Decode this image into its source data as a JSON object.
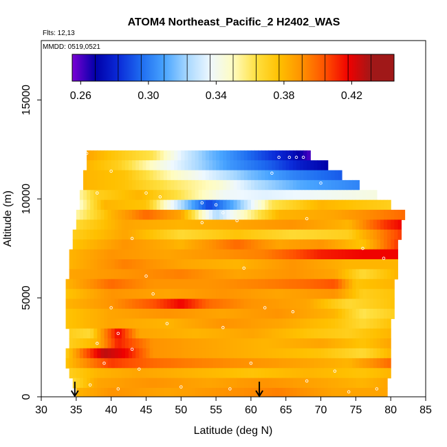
{
  "chart_data": {
    "type": "heatmap",
    "title": "ATOM4 Northeast_Pacific_2 H2402_WAS",
    "flights_label": "Flts: 12,13",
    "dates_label": "MMDD: 0519,0521",
    "xlabel": "Latitude (deg N)",
    "ylabel": "Altitude (m)",
    "xlim": [
      30,
      85
    ],
    "ylim": [
      0,
      18000
    ],
    "x_ticks": [
      "30",
      "35",
      "40",
      "45",
      "50",
      "55",
      "60",
      "65",
      "70",
      "75",
      "80",
      "85"
    ],
    "y_ticks": [
      "0",
      "5000",
      "10000",
      "15000"
    ],
    "colorbar": {
      "range": [
        0.255,
        0.445
      ],
      "tick_labels": [
        "0.26",
        "0.30",
        "0.34",
        "0.38",
        "0.42"
      ],
      "tick_values": [
        0.26,
        0.3,
        0.34,
        0.38,
        0.42
      ],
      "colors": [
        "#7a00d4",
        "#0000a8",
        "#0a2ad8",
        "#1e6cf0",
        "#48a4ff",
        "#a8d8ff",
        "#eef8ff",
        "#fffcc0",
        "#ffe040",
        "#ffc000",
        "#ff9000",
        "#ff5000",
        "#f00000",
        "#a01818"
      ]
    },
    "arrows_latitude": [
      34.8,
      61.2
    ],
    "rows": [
      {
        "alt": 12200,
        "lat_start": 36.5,
        "lat_end": 68.5,
        "stops": [
          [
            36.5,
            0.395
          ],
          [
            40,
            0.385
          ],
          [
            46,
            0.37
          ],
          [
            50,
            0.34
          ],
          [
            54,
            0.32
          ],
          [
            58,
            0.305
          ],
          [
            62,
            0.29
          ],
          [
            66,
            0.275
          ],
          [
            68.5,
            0.26
          ]
        ]
      },
      {
        "alt": 11700,
        "lat_start": 36.5,
        "lat_end": 71,
        "stops": [
          [
            36.5,
            0.39
          ],
          [
            41,
            0.38
          ],
          [
            47,
            0.35
          ],
          [
            52,
            0.33
          ],
          [
            57,
            0.31
          ],
          [
            63,
            0.295
          ],
          [
            67,
            0.28
          ],
          [
            71,
            0.27
          ]
        ]
      },
      {
        "alt": 11200,
        "lat_start": 36,
        "lat_end": 73,
        "stops": [
          [
            36,
            0.39
          ],
          [
            42,
            0.385
          ],
          [
            48,
            0.36
          ],
          [
            54,
            0.34
          ],
          [
            60,
            0.32
          ],
          [
            66,
            0.305
          ],
          [
            73,
            0.295
          ]
        ]
      },
      {
        "alt": 10700,
        "lat_start": 36,
        "lat_end": 75.5,
        "stops": [
          [
            36,
            0.39
          ],
          [
            42,
            0.385
          ],
          [
            48,
            0.37
          ],
          [
            55,
            0.355
          ],
          [
            61,
            0.33
          ],
          [
            67,
            0.315
          ],
          [
            75.5,
            0.305
          ]
        ]
      },
      {
        "alt": 10200,
        "lat_start": 35.5,
        "lat_end": 78,
        "stops": [
          [
            35.5,
            0.36
          ],
          [
            38,
            0.38
          ],
          [
            44,
            0.39
          ],
          [
            50,
            0.37
          ],
          [
            56,
            0.345
          ],
          [
            62,
            0.34
          ],
          [
            70,
            0.345
          ],
          [
            78,
            0.35
          ]
        ]
      },
      {
        "alt": 9700,
        "lat_start": 35.5,
        "lat_end": 80,
        "stops": [
          [
            35.5,
            0.355
          ],
          [
            39,
            0.39
          ],
          [
            45,
            0.385
          ],
          [
            50,
            0.33
          ],
          [
            54,
            0.29
          ],
          [
            58,
            0.32
          ],
          [
            63,
            0.37
          ],
          [
            70,
            0.39
          ],
          [
            80,
            0.38
          ]
        ]
      },
      {
        "alt": 9200,
        "lat_start": 35,
        "lat_end": 82,
        "stops": [
          [
            35,
            0.36
          ],
          [
            40,
            0.39
          ],
          [
            45,
            0.41
          ],
          [
            50,
            0.395
          ],
          [
            55,
            0.33
          ],
          [
            58,
            0.35
          ],
          [
            64,
            0.39
          ],
          [
            72,
            0.395
          ],
          [
            82,
            0.41
          ]
        ]
      },
      {
        "alt": 8700,
        "lat_start": 35,
        "lat_end": 81.5,
        "stops": [
          [
            35,
            0.375
          ],
          [
            42,
            0.395
          ],
          [
            50,
            0.39
          ],
          [
            58,
            0.395
          ],
          [
            66,
            0.4
          ],
          [
            74,
            0.39
          ],
          [
            79,
            0.42
          ],
          [
            81.5,
            0.43
          ]
        ]
      },
      {
        "alt": 8200,
        "lat_start": 34.5,
        "lat_end": 81.5,
        "stops": [
          [
            34.5,
            0.38
          ],
          [
            42,
            0.395
          ],
          [
            50,
            0.375
          ],
          [
            58,
            0.385
          ],
          [
            66,
            0.375
          ],
          [
            74,
            0.38
          ],
          [
            81.5,
            0.42
          ]
        ]
      },
      {
        "alt": 7700,
        "lat_start": 34.5,
        "lat_end": 81,
        "stops": [
          [
            34.5,
            0.385
          ],
          [
            42,
            0.4
          ],
          [
            50,
            0.39
          ],
          [
            58,
            0.41
          ],
          [
            64,
            0.395
          ],
          [
            70,
            0.4
          ],
          [
            76,
            0.385
          ],
          [
            81,
            0.42
          ]
        ]
      },
      {
        "alt": 7200,
        "lat_start": 34,
        "lat_end": 81,
        "stops": [
          [
            34,
            0.39
          ],
          [
            40,
            0.4
          ],
          [
            48,
            0.395
          ],
          [
            55,
            0.4
          ],
          [
            62,
            0.405
          ],
          [
            70,
            0.425
          ],
          [
            76,
            0.43
          ],
          [
            81,
            0.43
          ]
        ]
      },
      {
        "alt": 6700,
        "lat_start": 34,
        "lat_end": 81,
        "stops": [
          [
            34,
            0.39
          ],
          [
            42,
            0.405
          ],
          [
            50,
            0.395
          ],
          [
            58,
            0.39
          ],
          [
            66,
            0.4
          ],
          [
            74,
            0.39
          ],
          [
            81,
            0.39
          ]
        ]
      },
      {
        "alt": 6200,
        "lat_start": 34,
        "lat_end": 81,
        "stops": [
          [
            34,
            0.395
          ],
          [
            42,
            0.4
          ],
          [
            50,
            0.405
          ],
          [
            58,
            0.395
          ],
          [
            66,
            0.4
          ],
          [
            72,
            0.395
          ],
          [
            76,
            0.375
          ],
          [
            81,
            0.39
          ]
        ]
      },
      {
        "alt": 5700,
        "lat_start": 33.5,
        "lat_end": 80.5,
        "stops": [
          [
            33.5,
            0.39
          ],
          [
            40,
            0.41
          ],
          [
            46,
            0.4
          ],
          [
            54,
            0.4
          ],
          [
            62,
            0.405
          ],
          [
            68,
            0.41
          ],
          [
            72,
            0.415
          ],
          [
            75,
            0.385
          ],
          [
            80.5,
            0.39
          ]
        ]
      },
      {
        "alt": 5200,
        "lat_start": 33.5,
        "lat_end": 80.5,
        "stops": [
          [
            33.5,
            0.385
          ],
          [
            40,
            0.4
          ],
          [
            48,
            0.395
          ],
          [
            56,
            0.4
          ],
          [
            64,
            0.395
          ],
          [
            72,
            0.4
          ],
          [
            76,
            0.38
          ],
          [
            80.5,
            0.385
          ]
        ]
      },
      {
        "alt": 4700,
        "lat_start": 33.5,
        "lat_end": 80.5,
        "stops": [
          [
            33.5,
            0.39
          ],
          [
            40,
            0.4
          ],
          [
            46,
            0.415
          ],
          [
            50,
            0.43
          ],
          [
            54,
            0.41
          ],
          [
            60,
            0.4
          ],
          [
            68,
            0.395
          ],
          [
            74,
            0.375
          ],
          [
            80.5,
            0.385
          ]
        ]
      },
      {
        "alt": 4200,
        "lat_start": 33.5,
        "lat_end": 80.5,
        "stops": [
          [
            33.5,
            0.385
          ],
          [
            40,
            0.395
          ],
          [
            48,
            0.4
          ],
          [
            56,
            0.395
          ],
          [
            64,
            0.4
          ],
          [
            72,
            0.39
          ],
          [
            76,
            0.37
          ],
          [
            80.5,
            0.38
          ]
        ]
      },
      {
        "alt": 3700,
        "lat_start": 33.5,
        "lat_end": 80,
        "stops": [
          [
            33.5,
            0.385
          ],
          [
            40,
            0.395
          ],
          [
            48,
            0.39
          ],
          [
            56,
            0.4
          ],
          [
            64,
            0.395
          ],
          [
            72,
            0.385
          ],
          [
            76,
            0.375
          ],
          [
            80,
            0.385
          ]
        ]
      },
      {
        "alt": 3200,
        "lat_start": 34,
        "lat_end": 80,
        "stops": [
          [
            34,
            0.38
          ],
          [
            37,
            0.375
          ],
          [
            41,
            0.43
          ],
          [
            44,
            0.395
          ],
          [
            52,
            0.39
          ],
          [
            60,
            0.395
          ],
          [
            68,
            0.385
          ],
          [
            74,
            0.38
          ],
          [
            80,
            0.39
          ]
        ]
      },
      {
        "alt": 2700,
        "lat_start": 34,
        "lat_end": 80,
        "stops": [
          [
            34,
            0.38
          ],
          [
            38,
            0.39
          ],
          [
            41,
            0.425
          ],
          [
            46,
            0.4
          ],
          [
            54,
            0.395
          ],
          [
            62,
            0.39
          ],
          [
            70,
            0.395
          ],
          [
            76,
            0.385
          ],
          [
            80,
            0.395
          ]
        ]
      },
      {
        "alt": 2200,
        "lat_start": 33.5,
        "lat_end": 80,
        "stops": [
          [
            33.5,
            0.38
          ],
          [
            36,
            0.41
          ],
          [
            39,
            0.44
          ],
          [
            42,
            0.43
          ],
          [
            46,
            0.4
          ],
          [
            54,
            0.395
          ],
          [
            62,
            0.39
          ],
          [
            70,
            0.385
          ],
          [
            76,
            0.375
          ],
          [
            80,
            0.39
          ]
        ]
      },
      {
        "alt": 1700,
        "lat_start": 33.5,
        "lat_end": 80,
        "stops": [
          [
            33.5,
            0.385
          ],
          [
            36,
            0.4
          ],
          [
            40,
            0.42
          ],
          [
            46,
            0.41
          ],
          [
            52,
            0.405
          ],
          [
            60,
            0.4
          ],
          [
            68,
            0.395
          ],
          [
            74,
            0.39
          ],
          [
            80,
            0.41
          ]
        ]
      },
      {
        "alt": 1200,
        "lat_start": 34,
        "lat_end": 80,
        "stops": [
          [
            34,
            0.38
          ],
          [
            38,
            0.39
          ],
          [
            44,
            0.395
          ],
          [
            52,
            0.39
          ],
          [
            60,
            0.385
          ],
          [
            68,
            0.39
          ],
          [
            76,
            0.385
          ],
          [
            80,
            0.39
          ]
        ]
      },
      {
        "alt": 700,
        "lat_start": 34.5,
        "lat_end": 79.5,
        "stops": [
          [
            34.5,
            0.375
          ],
          [
            38,
            0.395
          ],
          [
            46,
            0.4
          ],
          [
            54,
            0.395
          ],
          [
            62,
            0.4
          ],
          [
            70,
            0.395
          ],
          [
            76,
            0.39
          ],
          [
            79.5,
            0.395
          ]
        ]
      },
      {
        "alt": 200,
        "lat_start": 35,
        "lat_end": 79.5,
        "stops": [
          [
            35,
            0.39
          ],
          [
            40,
            0.4
          ],
          [
            48,
            0.395
          ],
          [
            56,
            0.4
          ],
          [
            64,
            0.405
          ],
          [
            72,
            0.395
          ],
          [
            79.5,
            0.395
          ]
        ]
      }
    ],
    "samples": [
      [
        36.5,
        12300
      ],
      [
        40,
        11400
      ],
      [
        38,
        10300
      ],
      [
        45,
        10300
      ],
      [
        47,
        10100
      ],
      [
        53,
        9800
      ],
      [
        55,
        9700
      ],
      [
        56,
        9300
      ],
      [
        64,
        12100
      ],
      [
        65.5,
        12100
      ],
      [
        66.5,
        12100
      ],
      [
        67.5,
        12100
      ],
      [
        63,
        11300
      ],
      [
        70,
        10800
      ],
      [
        43,
        8000
      ],
      [
        53,
        8800
      ],
      [
        58,
        8900
      ],
      [
        68,
        9000
      ],
      [
        76,
        7500
      ],
      [
        79,
        7000
      ],
      [
        45,
        6100
      ],
      [
        59,
        6500
      ],
      [
        46,
        5200
      ],
      [
        40,
        4500
      ],
      [
        62,
        4500
      ],
      [
        66,
        4300
      ],
      [
        48,
        3700
      ],
      [
        56,
        3500
      ],
      [
        41,
        3200
      ],
      [
        38,
        2700
      ],
      [
        43,
        2400
      ],
      [
        39,
        1700
      ],
      [
        44,
        1400
      ],
      [
        60,
        1700
      ],
      [
        72,
        1300
      ],
      [
        37,
        600
      ],
      [
        41,
        400
      ],
      [
        50,
        500
      ],
      [
        57,
        400
      ],
      [
        68,
        800
      ],
      [
        74,
        250
      ],
      [
        78,
        400
      ]
    ]
  }
}
